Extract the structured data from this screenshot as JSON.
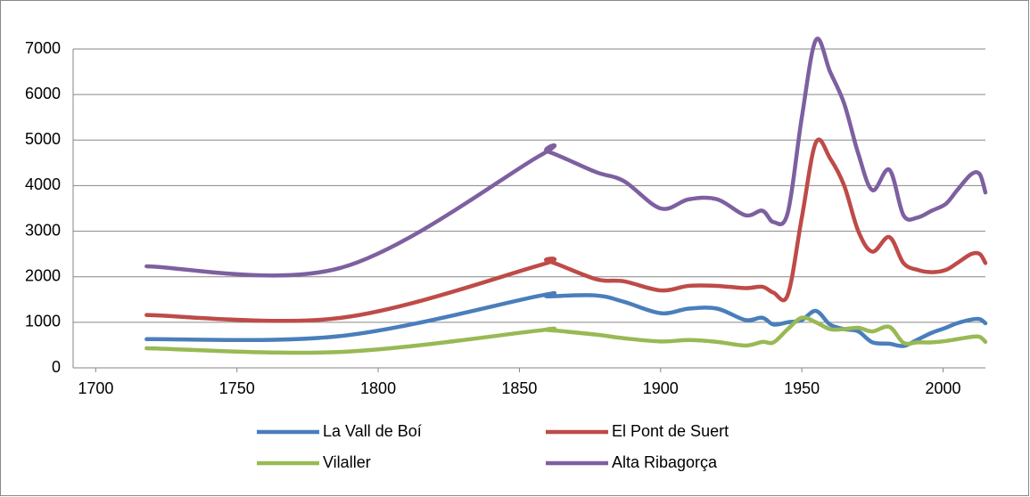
{
  "chart_data": {
    "type": "line",
    "x": [
      1718,
      1787,
      1857,
      1860,
      1877,
      1887,
      1900,
      1910,
      1920,
      1930,
      1936,
      1940,
      1945,
      1950,
      1955,
      1960,
      1965,
      1970,
      1975,
      1981,
      1986,
      1991,
      1996,
      2001,
      2005,
      2010,
      2013,
      2015
    ],
    "series": [
      {
        "name": "La Vall de Boí",
        "color": "#4a7ebb",
        "values": [
          630,
          700,
          1580,
          1570,
          1590,
          1450,
          1200,
          1300,
          1300,
          1050,
          1100,
          950,
          1000,
          1050,
          1250,
          950,
          850,
          800,
          560,
          530,
          480,
          620,
          770,
          880,
          980,
          1060,
          1070,
          980
        ]
      },
      {
        "name": "El Pont de Suert",
        "color": "#be4b48",
        "values": [
          1160,
          1100,
          2250,
          2350,
          1950,
          1900,
          1700,
          1800,
          1800,
          1750,
          1780,
          1650,
          1600,
          3300,
          4950,
          4600,
          4000,
          3000,
          2550,
          2870,
          2300,
          2150,
          2100,
          2150,
          2300,
          2500,
          2500,
          2300
        ]
      },
      {
        "name": "Vilaller",
        "color": "#98b954",
        "values": [
          430,
          350,
          820,
          830,
          730,
          650,
          580,
          610,
          570,
          490,
          570,
          560,
          850,
          1100,
          1000,
          850,
          850,
          880,
          800,
          900,
          550,
          560,
          560,
          590,
          630,
          680,
          680,
          570
        ]
      },
      {
        "name": "Alta Ribagorça",
        "color": "#7d60a0",
        "values": [
          2230,
          2200,
          4650,
          4750,
          4300,
          4100,
          3500,
          3700,
          3700,
          3350,
          3450,
          3200,
          3400,
          5500,
          7200,
          6500,
          5800,
          4700,
          3900,
          4350,
          3350,
          3300,
          3450,
          3600,
          3900,
          4250,
          4250,
          3850
        ]
      }
    ],
    "xlim": [
      1692,
      2015
    ],
    "xticks": [
      1700,
      1750,
      1800,
      1850,
      1900,
      1950,
      2000
    ],
    "ylim": [
      0,
      7000
    ],
    "yticks": [
      0,
      1000,
      2000,
      3000,
      4000,
      5000,
      6000,
      7000
    ],
    "grid": true,
    "legend": "bottom"
  }
}
